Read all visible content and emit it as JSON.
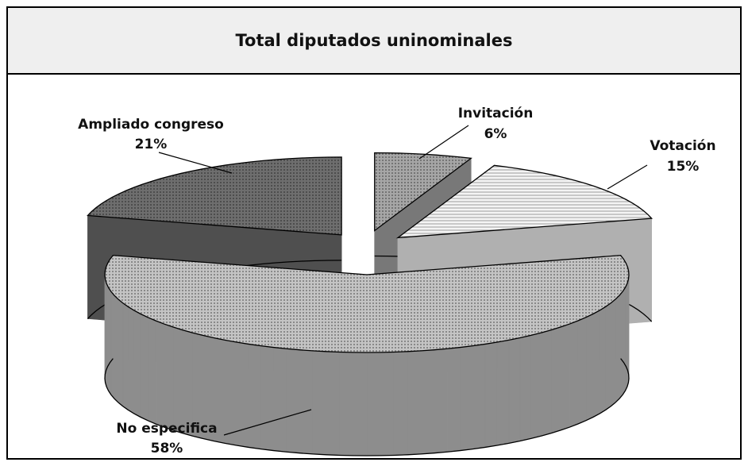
{
  "chart_data": {
    "type": "pie3d",
    "title": "Total diputados uninominales",
    "categories": [
      "Invitación",
      "Votación",
      "No especifica",
      "Ampliado congreso"
    ],
    "values": [
      6,
      15,
      58,
      21
    ],
    "value_labels": [
      "6%",
      "15%",
      "58%",
      "21%"
    ],
    "colors": [
      "#a6a6a6",
      "#f4f4f4",
      "#c4c4c4",
      "#6e6e6e"
    ]
  }
}
